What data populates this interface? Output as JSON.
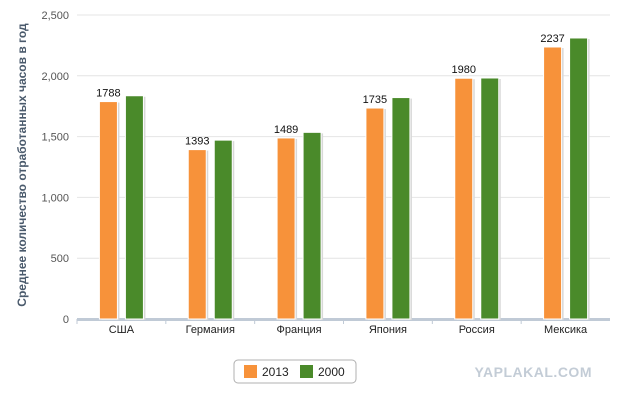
{
  "chart_data": {
    "type": "bar",
    "title": "",
    "xlabel": "",
    "ylabel": "Среднее количество отработанных часов в год",
    "categories": [
      "США",
      "Германия",
      "Франция",
      "Япония",
      "Россия",
      "Мексика"
    ],
    "series": [
      {
        "name": "2013",
        "values": [
          1788,
          1393,
          1489,
          1735,
          1980,
          2237
        ],
        "data_labels": [
          "1788",
          "1393",
          "1489",
          "1735",
          "1980",
          "2237"
        ],
        "color": "#f7923a"
      },
      {
        "name": "2000",
        "values": [
          1836,
          1471,
          1535,
          1821,
          1982,
          2311
        ],
        "color": "#4a8a2a"
      }
    ],
    "ylim": [
      0,
      2500
    ],
    "yticks": [
      0,
      500,
      1000,
      1500,
      2000,
      2500
    ],
    "ytick_labels": [
      "0",
      "500",
      "1,000",
      "1,500",
      "2,000",
      "2,500"
    ],
    "grid": true,
    "legend_position": "bottom-center"
  },
  "watermark": "YAPLAKAL.COM",
  "colors": {
    "grid": "#e4e4e4",
    "axis": "#c0cad6",
    "bar_shadow": "#d8d8d8"
  }
}
